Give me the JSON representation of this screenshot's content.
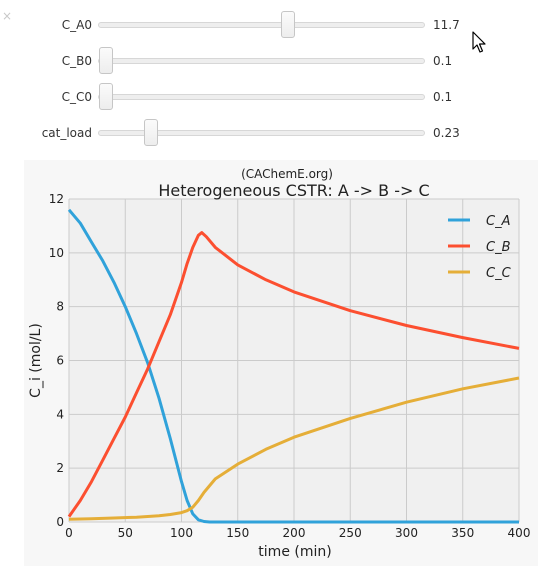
{
  "close_glyph": "×",
  "controls": {
    "sliders": [
      {
        "label": "C_A0",
        "value_text": "11.7",
        "value": 11.7,
        "min": 0,
        "max": 20
      },
      {
        "label": "C_B0",
        "value_text": "0.1",
        "value": 0.1,
        "min": 0.1,
        "max": 20
      },
      {
        "label": "C_C0",
        "value_text": "0.1",
        "value": 0.1,
        "min": 0.1,
        "max": 20
      },
      {
        "label": "cat_load",
        "value_text": "0.23",
        "value": 0.23,
        "min": 0.1,
        "max": 1.0
      }
    ]
  },
  "chart_data": {
    "type": "line",
    "title": "Heterogeneous CSTR: A -> B -> C",
    "subtitle": "(CAChemE.org)",
    "xlabel": "time (min)",
    "ylabel": "C_i (mol/L)",
    "xlim": [
      0,
      400
    ],
    "ylim": [
      0,
      12
    ],
    "xticks": [
      0,
      50,
      100,
      150,
      200,
      250,
      300,
      350,
      400
    ],
    "yticks": [
      0,
      2,
      4,
      6,
      8,
      10,
      12
    ],
    "grid": true,
    "legend_position": "top-right",
    "series": [
      {
        "name": "C_A",
        "color": "#30a2da",
        "x": [
          0,
          10,
          20,
          30,
          40,
          50,
          60,
          70,
          80,
          90,
          100,
          105,
          110,
          115,
          120,
          125,
          130,
          150,
          200,
          250,
          300,
          350,
          400
        ],
        "y": [
          11.6,
          11.1,
          10.4,
          9.7,
          8.9,
          8.0,
          7.0,
          5.9,
          4.6,
          3.1,
          1.5,
          0.8,
          0.3,
          0.08,
          0.02,
          0.0,
          0.0,
          0.0,
          0.0,
          0.0,
          0.0,
          0.0,
          0.0
        ]
      },
      {
        "name": "C_B",
        "color": "#fc4f30",
        "x": [
          0,
          10,
          20,
          30,
          40,
          50,
          60,
          70,
          80,
          90,
          100,
          105,
          110,
          115,
          118,
          122,
          130,
          150,
          175,
          200,
          250,
          300,
          350,
          400
        ],
        "y": [
          0.2,
          0.8,
          1.5,
          2.3,
          3.1,
          3.9,
          4.8,
          5.7,
          6.7,
          7.7,
          8.9,
          9.6,
          10.2,
          10.65,
          10.75,
          10.6,
          10.2,
          9.55,
          9.0,
          8.55,
          7.85,
          7.3,
          6.85,
          6.45
        ]
      },
      {
        "name": "C_C",
        "color": "#e5ae38",
        "x": [
          0,
          20,
          40,
          60,
          80,
          90,
          100,
          105,
          110,
          115,
          120,
          130,
          150,
          175,
          200,
          250,
          300,
          350,
          400
        ],
        "y": [
          0.1,
          0.12,
          0.15,
          0.18,
          0.23,
          0.28,
          0.35,
          0.42,
          0.55,
          0.8,
          1.1,
          1.6,
          2.15,
          2.7,
          3.15,
          3.85,
          4.45,
          4.95,
          5.35
        ]
      }
    ]
  }
}
